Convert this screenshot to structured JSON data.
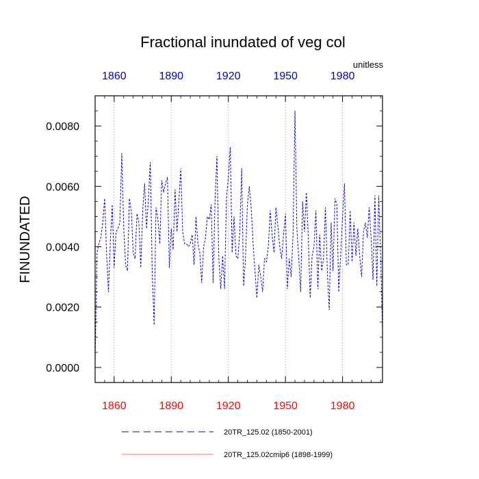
{
  "chart_data": {
    "type": "line",
    "title": "Fractional inundated of veg col",
    "units": "unitless",
    "ylabel": "FINUNDATED",
    "xlabel": "",
    "xlim": [
      1850,
      2001
    ],
    "ylim": [
      -0.0005,
      0.009
    ],
    "yticks": [
      0.0,
      0.002,
      0.004,
      0.006,
      0.008
    ],
    "ytick_labels": [
      "0.0000",
      "0.0020",
      "0.0040",
      "0.0060",
      "0.0080"
    ],
    "xticks": [
      1860,
      1890,
      1920,
      1950,
      1980
    ],
    "xtick_labels": [
      "1860",
      "1890",
      "1920",
      "1950",
      "1980"
    ],
    "xtick_color_bottom": "#ff0000",
    "xtick_color_top": "#0000cc",
    "grid": "vertical dotted at x ticks",
    "legend_placement": "bottom",
    "series": [
      {
        "name": "20TR_125.02 (1850-2001)",
        "color": "#0000dd",
        "dash": "dashed",
        "x": [
          1850,
          1851,
          1852,
          1853,
          1854,
          1855,
          1856,
          1857,
          1858,
          1859,
          1860,
          1861,
          1862,
          1863,
          1864,
          1865,
          1866,
          1867,
          1868,
          1869,
          1870,
          1871,
          1872,
          1873,
          1874,
          1875,
          1876,
          1877,
          1878,
          1879,
          1880,
          1881,
          1882,
          1883,
          1884,
          1885,
          1886,
          1887,
          1888,
          1889,
          1890,
          1891,
          1892,
          1893,
          1894,
          1895,
          1896,
          1897,
          1898,
          1899,
          1900,
          1901,
          1902,
          1903,
          1904,
          1905,
          1906,
          1907,
          1908,
          1909,
          1910,
          1911,
          1912,
          1913,
          1914,
          1915,
          1916,
          1917,
          1918,
          1919,
          1920,
          1921,
          1922,
          1923,
          1924,
          1925,
          1926,
          1927,
          1928,
          1929,
          1930,
          1931,
          1932,
          1933,
          1934,
          1935,
          1936,
          1937,
          1938,
          1939,
          1940,
          1941,
          1942,
          1943,
          1944,
          1945,
          1946,
          1947,
          1948,
          1949,
          1950,
          1951,
          1952,
          1953,
          1954,
          1955,
          1956,
          1957,
          1958,
          1959,
          1960,
          1961,
          1962,
          1963,
          1964,
          1965,
          1966,
          1967,
          1968,
          1969,
          1970,
          1971,
          1972,
          1973,
          1974,
          1975,
          1976,
          1977,
          1978,
          1979,
          1980,
          1981,
          1982,
          1983,
          1984,
          1985,
          1986,
          1987,
          1988,
          1989,
          1990,
          1991,
          1992,
          1993,
          1994,
          1995,
          1996,
          1997,
          1998,
          1999,
          2000,
          2001
        ],
        "values": [
          0.0002,
          0.0038,
          0.0041,
          0.0043,
          0.0048,
          0.0056,
          0.0038,
          0.0025,
          0.0042,
          0.0054,
          0.0033,
          0.0045,
          0.0046,
          0.0048,
          0.0071,
          0.0047,
          0.0034,
          0.0032,
          0.0056,
          0.0052,
          0.0038,
          0.0036,
          0.0051,
          0.0048,
          0.0033,
          0.0052,
          0.0061,
          0.0046,
          0.0056,
          0.0068,
          0.0032,
          0.0014,
          0.0053,
          0.0049,
          0.0041,
          0.0062,
          0.0058,
          0.0061,
          0.0063,
          0.0033,
          0.0046,
          0.0039,
          0.0059,
          0.0045,
          0.0055,
          0.0066,
          0.0045,
          0.0041,
          0.0041,
          0.004,
          0.0041,
          0.0044,
          0.0034,
          0.005,
          0.0041,
          0.0038,
          0.0028,
          0.004,
          0.0043,
          0.005,
          0.0049,
          0.0054,
          0.0028,
          0.0055,
          0.007,
          0.0036,
          0.0026,
          0.0037,
          0.0026,
          0.0056,
          0.0063,
          0.0073,
          0.0038,
          0.005,
          0.0037,
          0.0036,
          0.0045,
          0.0066,
          0.0027,
          0.0036,
          0.0054,
          0.006,
          0.0053,
          0.0041,
          0.0032,
          0.0023,
          0.0034,
          0.003,
          0.0025,
          0.0036,
          0.0035,
          0.004,
          0.0052,
          0.0044,
          0.0038,
          0.0053,
          0.0047,
          0.004,
          0.0036,
          0.0044,
          0.0051,
          0.0026,
          0.0036,
          0.003,
          0.0044,
          0.0085,
          0.0046,
          0.0036,
          0.0025,
          0.0055,
          0.0045,
          0.0058,
          0.0043,
          0.0023,
          0.0037,
          0.004,
          0.0052,
          0.0026,
          0.0044,
          0.0032,
          0.0036,
          0.0053,
          0.0032,
          0.0019,
          0.0048,
          0.0032,
          0.0056,
          0.0054,
          0.0025,
          0.0037,
          0.005,
          0.0061,
          0.0034,
          0.0034,
          0.0052,
          0.0035,
          0.0048,
          0.0037,
          0.0046,
          0.0037,
          0.003,
          0.0045,
          0.0048,
          0.0043,
          0.0053,
          0.0043,
          0.0029,
          0.0057,
          0.0027,
          0.0057,
          0.0037,
          0.0012
        ]
      },
      {
        "name": "20TR_125.02cmip6 (1898-1999)",
        "color": "#ff7777",
        "dash": "solid",
        "x": [],
        "values": []
      }
    ]
  }
}
